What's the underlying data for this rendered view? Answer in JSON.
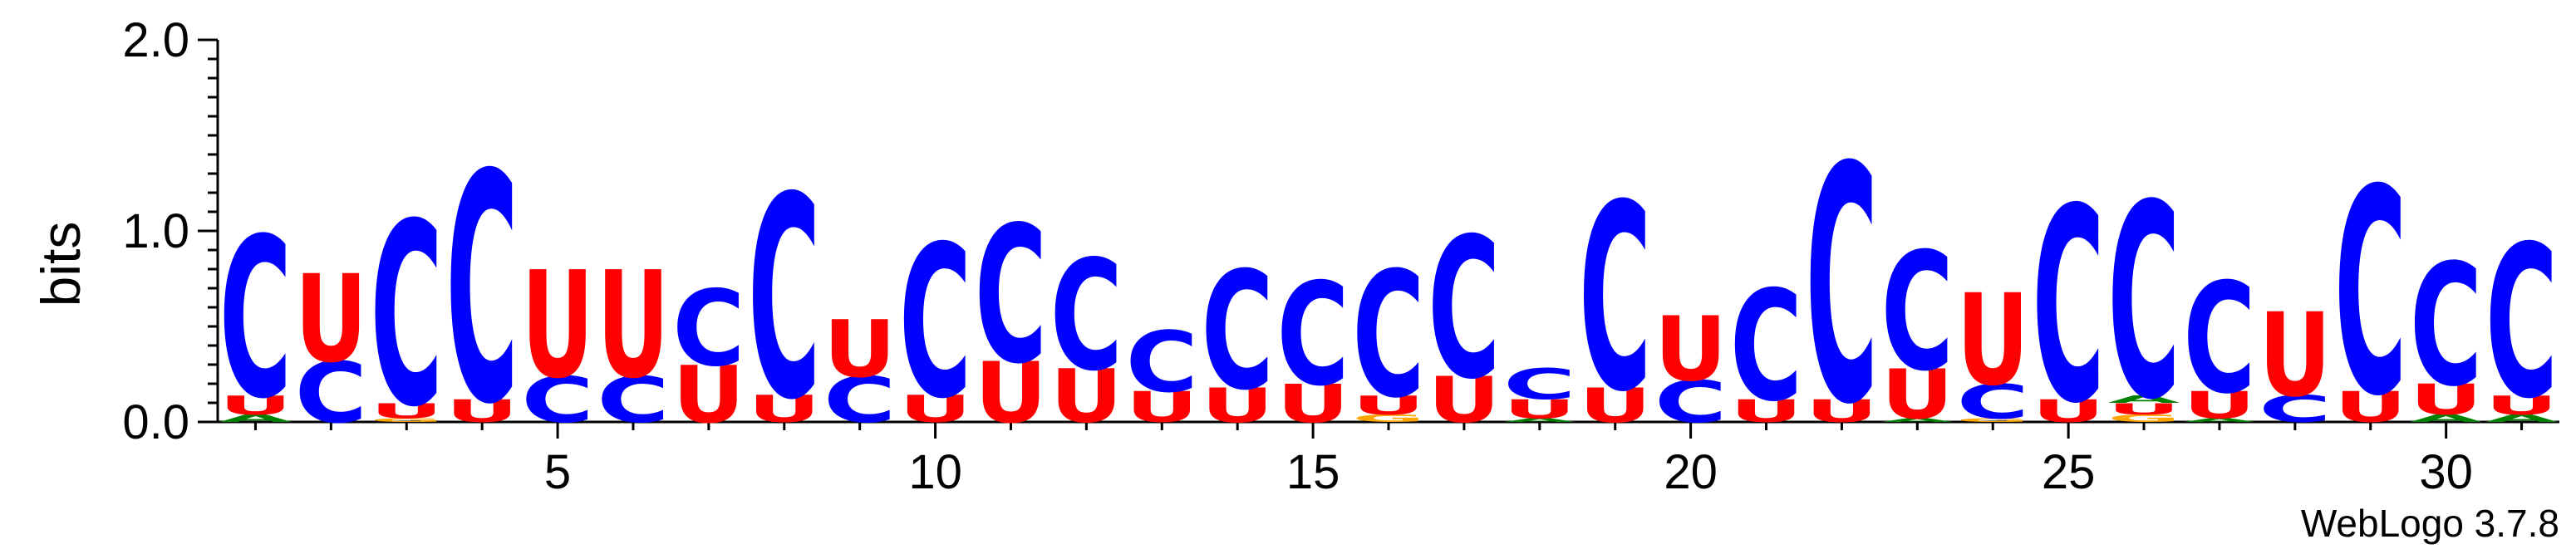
{
  "chart_data": {
    "type": "sequence-logo",
    "ylabel": "bits",
    "ylim": [
      0,
      2.0
    ],
    "y_ticks": [
      "0.0",
      "1.0",
      "2.0"
    ],
    "y_tick_values": [
      0,
      1,
      2
    ],
    "x_ticks": [
      "5",
      "10",
      "15",
      "20",
      "25",
      "30"
    ],
    "x_tick_values": [
      5,
      10,
      15,
      20,
      25,
      30
    ],
    "positions_count": 31,
    "credit": "WebLogo 3.7.8",
    "colors": {
      "C": "#0000ff",
      "U": "#ff0000",
      "A": "#008000",
      "G": "#ffa500"
    },
    "columns": [
      {
        "pos": 1,
        "stack": [
          {
            "l": "A",
            "h": 0.04
          },
          {
            "l": "U",
            "h": 0.1
          },
          {
            "l": "C",
            "h": 0.84
          }
        ]
      },
      {
        "pos": 2,
        "stack": [
          {
            "l": "C",
            "h": 0.32
          },
          {
            "l": "U",
            "h": 0.46
          }
        ]
      },
      {
        "pos": 3,
        "stack": [
          {
            "l": "G",
            "h": 0.02
          },
          {
            "l": "U",
            "h": 0.08
          },
          {
            "l": "C",
            "h": 0.96
          }
        ]
      },
      {
        "pos": 4,
        "stack": [
          {
            "l": "U",
            "h": 0.12
          },
          {
            "l": "C",
            "h": 1.2
          }
        ]
      },
      {
        "pos": 5,
        "stack": [
          {
            "l": "C",
            "h": 0.24
          },
          {
            "l": "U",
            "h": 0.56
          }
        ]
      },
      {
        "pos": 6,
        "stack": [
          {
            "l": "C",
            "h": 0.24
          },
          {
            "l": "U",
            "h": 0.56
          }
        ]
      },
      {
        "pos": 7,
        "stack": [
          {
            "l": "U",
            "h": 0.3
          },
          {
            "l": "C",
            "h": 0.4
          }
        ]
      },
      {
        "pos": 8,
        "stack": [
          {
            "l": "U",
            "h": 0.14
          },
          {
            "l": "C",
            "h": 1.06
          }
        ]
      },
      {
        "pos": 9,
        "stack": [
          {
            "l": "C",
            "h": 0.24
          },
          {
            "l": "U",
            "h": 0.3
          }
        ]
      },
      {
        "pos": 10,
        "stack": [
          {
            "l": "U",
            "h": 0.14
          },
          {
            "l": "C",
            "h": 0.8
          }
        ]
      },
      {
        "pos": 11,
        "stack": [
          {
            "l": "U",
            "h": 0.32
          },
          {
            "l": "C",
            "h": 0.72
          }
        ]
      },
      {
        "pos": 12,
        "stack": [
          {
            "l": "U",
            "h": 0.28
          },
          {
            "l": "C",
            "h": 0.58
          }
        ]
      },
      {
        "pos": 13,
        "stack": [
          {
            "l": "U",
            "h": 0.16
          },
          {
            "l": "C",
            "h": 0.32
          }
        ]
      },
      {
        "pos": 14,
        "stack": [
          {
            "l": "U",
            "h": 0.18
          },
          {
            "l": "C",
            "h": 0.62
          }
        ]
      },
      {
        "pos": 15,
        "stack": [
          {
            "l": "U",
            "h": 0.2
          },
          {
            "l": "C",
            "h": 0.54
          }
        ]
      },
      {
        "pos": 16,
        "stack": [
          {
            "l": "G",
            "h": 0.04
          },
          {
            "l": "U",
            "h": 0.1
          },
          {
            "l": "C",
            "h": 0.66
          }
        ]
      },
      {
        "pos": 17,
        "stack": [
          {
            "l": "U",
            "h": 0.24
          },
          {
            "l": "C",
            "h": 0.74
          }
        ]
      },
      {
        "pos": 18,
        "stack": [
          {
            "l": "A",
            "h": 0.02
          },
          {
            "l": "U",
            "h": 0.1
          },
          {
            "l": "C",
            "h": 0.16
          }
        ]
      },
      {
        "pos": 19,
        "stack": [
          {
            "l": "U",
            "h": 0.18
          },
          {
            "l": "C",
            "h": 0.98
          }
        ]
      },
      {
        "pos": 20,
        "stack": [
          {
            "l": "C",
            "h": 0.22
          },
          {
            "l": "U",
            "h": 0.34
          }
        ]
      },
      {
        "pos": 21,
        "stack": [
          {
            "l": "U",
            "h": 0.12
          },
          {
            "l": "C",
            "h": 0.58
          }
        ]
      },
      {
        "pos": 22,
        "stack": [
          {
            "l": "U",
            "h": 0.12
          },
          {
            "l": "C",
            "h": 1.24
          }
        ]
      },
      {
        "pos": 23,
        "stack": [
          {
            "l": "A",
            "h": 0.02
          },
          {
            "l": "U",
            "h": 0.26
          },
          {
            "l": "C",
            "h": 0.62
          }
        ]
      },
      {
        "pos": 24,
        "stack": [
          {
            "l": "G",
            "h": 0.02
          },
          {
            "l": "C",
            "h": 0.18
          },
          {
            "l": "U",
            "h": 0.48
          }
        ]
      },
      {
        "pos": 25,
        "stack": [
          {
            "l": "U",
            "h": 0.12
          },
          {
            "l": "C",
            "h": 1.02
          }
        ]
      },
      {
        "pos": 26,
        "stack": [
          {
            "l": "G",
            "h": 0.04
          },
          {
            "l": "U",
            "h": 0.06
          },
          {
            "l": "A",
            "h": 0.04
          },
          {
            "l": "C",
            "h": 1.02
          }
        ]
      },
      {
        "pos": 27,
        "stack": [
          {
            "l": "A",
            "h": 0.02
          },
          {
            "l": "U",
            "h": 0.14
          },
          {
            "l": "C",
            "h": 0.58
          }
        ]
      },
      {
        "pos": 28,
        "stack": [
          {
            "l": "C",
            "h": 0.14
          },
          {
            "l": "U",
            "h": 0.44
          }
        ]
      },
      {
        "pos": 29,
        "stack": [
          {
            "l": "U",
            "h": 0.16
          },
          {
            "l": "C",
            "h": 1.08
          }
        ]
      },
      {
        "pos": 30,
        "stack": [
          {
            "l": "A",
            "h": 0.04
          },
          {
            "l": "U",
            "h": 0.16
          },
          {
            "l": "C",
            "h": 0.64
          }
        ]
      },
      {
        "pos": 31,
        "stack": [
          {
            "l": "A",
            "h": 0.04
          },
          {
            "l": "U",
            "h": 0.1
          },
          {
            "l": "C",
            "h": 0.8
          }
        ]
      }
    ]
  }
}
